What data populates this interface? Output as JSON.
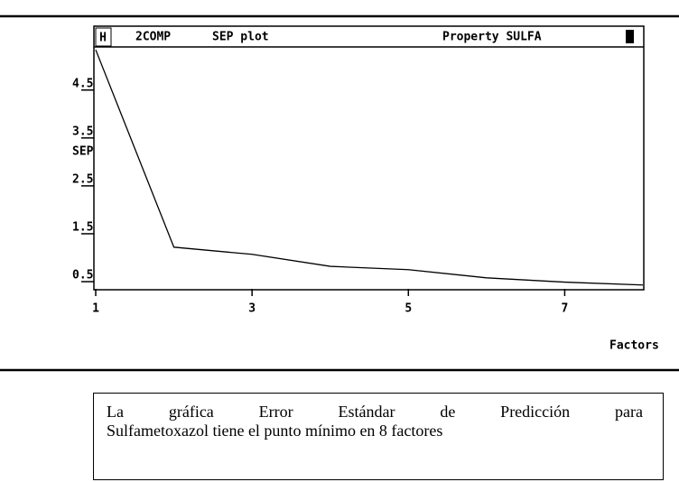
{
  "window": {
    "button": "H",
    "program": "2COMP",
    "property": "Property SULFA"
  },
  "chart_data": {
    "type": "line",
    "title": "SEP plot",
    "ylabel": "SEP",
    "xlabel": "Factors",
    "x": [
      1,
      2,
      3,
      4,
      5,
      6,
      7,
      8
    ],
    "series": [
      {
        "name": "SEP",
        "color": "#000000",
        "values": [
          5.34,
          1.22,
          1.07,
          0.82,
          0.75,
          0.58,
          0.49,
          0.43
        ]
      }
    ],
    "xlim": [
      1,
      8
    ],
    "xticks": [
      1,
      3,
      5,
      7
    ],
    "ylim": [
      0.35,
      5.4
    ],
    "yticks": [
      0.5,
      1.5,
      2.5,
      3.5,
      4.5
    ],
    "grid": false
  },
  "caption_lines": [
    "La gráfica Error Estándar de Predicción para",
    "Sulfametoxazol tiene el punto mínimo en 8 factores"
  ]
}
